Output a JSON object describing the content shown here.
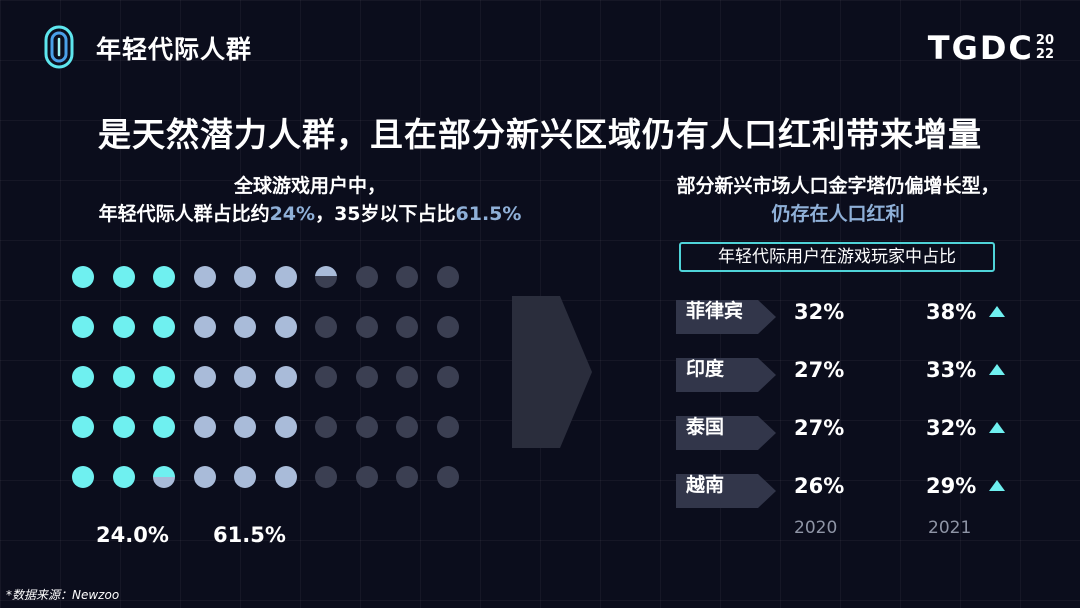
{
  "header": {
    "title": "年轻代际人群",
    "brand": "TGDC",
    "brand_year_top": "20",
    "brand_year_bottom": "22"
  },
  "headline": "是天然潜力人群，且在部分新兴区域仍有人口红利带来增量",
  "left": {
    "caption_line1": "全球游戏用户中，",
    "caption_line2_a": "年轻代际人群占比约",
    "caption_line2_b": "24%",
    "caption_line2_c": "，35岁以下占比",
    "caption_line2_d": "61.5%",
    "dot_grid": {
      "rows": 5,
      "cols": 10,
      "young_share": 0.24,
      "under35_share": 0.615,
      "colors": {
        "young": "#6ff0f0",
        "under35": "#a9bbd9",
        "rest": "#3b3f52"
      }
    },
    "pct_young": "24.0%",
    "pct_under35": "61.5%"
  },
  "right": {
    "caption_line1": "部分新兴市场人口金字塔仍偏增长型，",
    "caption_line2": "仍存在人口红利",
    "table_title": "年轻代际用户在游戏玩家中占比",
    "rows": [
      {
        "country": "菲律宾",
        "v2020": "32%",
        "v2021": "38%",
        "trend_icon": "triangle-up-icon"
      },
      {
        "country": "印度",
        "v2020": "27%",
        "v2021": "33%",
        "trend_icon": "triangle-up-icon"
      },
      {
        "country": "泰国",
        "v2020": "27%",
        "v2021": "32%",
        "trend_icon": "triangle-up-icon"
      },
      {
        "country": "越南",
        "v2020": "26%",
        "v2021": "29%",
        "trend_icon": "triangle-up-icon"
      }
    ],
    "year_2020": "2020",
    "year_2021": "2021"
  },
  "source": "*数据来源：Newzoo",
  "colors": {
    "accent": "#6ff0f0",
    "highlight": "#8fb0d8",
    "background": "#0b0d1c"
  }
}
